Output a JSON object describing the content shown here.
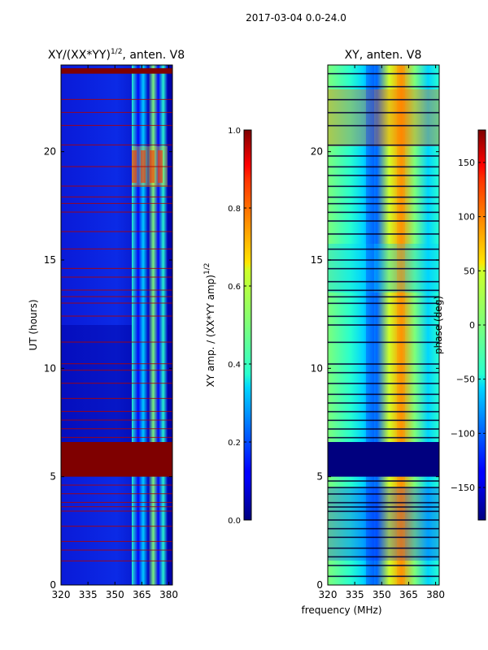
{
  "figure": {
    "suptitle": "2017-03-04 0.0-24.0",
    "xlabel_shared": "frequency (MHz)"
  },
  "chart_data": [
    {
      "type": "heatmap",
      "title_main": "XY/(XX*YY)",
      "title_sup": "1/2",
      "title_rest": ", anten. V8",
      "xlabel": "",
      "ylabel": "UT (hours)",
      "xlim": [
        320,
        382
      ],
      "ylim": [
        0,
        24
      ],
      "xticks": [
        "320",
        "335",
        "350",
        "365",
        "380"
      ],
      "xtick_values": [
        320,
        335,
        350,
        365,
        380
      ],
      "yticks": [
        "0",
        "5",
        "10",
        "15",
        "20"
      ],
      "ytick_values": [
        0,
        5,
        10,
        15,
        20
      ],
      "colorbar": {
        "label_main": "XY amp. / (XX*YY amp)",
        "label_sup": "1/2",
        "range": [
          0.0,
          1.0
        ],
        "ticks": [
          "0.0",
          "0.2",
          "0.4",
          "0.6",
          "0.8",
          "1.0"
        ],
        "tick_values": [
          0.0,
          0.2,
          0.4,
          0.6,
          0.8,
          1.0
        ]
      },
      "saturated_bands_hours": [
        [
          5.0,
          6.6
        ],
        [
          23.6,
          23.85
        ]
      ],
      "flag_lines_hours": [
        1.1,
        1.6,
        2.0,
        2.7,
        3.4,
        3.6,
        3.8,
        4.2,
        4.6,
        6.8,
        7.2,
        7.6,
        8.0,
        8.6,
        9.3,
        9.9,
        10.2,
        11.2,
        12.4,
        13.0,
        13.3,
        13.6,
        14.2,
        14.6,
        15.5,
        16.3,
        17.2,
        17.6,
        17.9,
        18.4,
        19.3,
        20.3,
        21.2,
        21.8,
        22.4
      ]
    },
    {
      "type": "heatmap",
      "title_main": "XY, anten. V8",
      "xlabel": "frequency (MHz)",
      "ylabel": "",
      "xlim": [
        320,
        382
      ],
      "ylim": [
        0,
        24
      ],
      "xticks": [
        "320",
        "335",
        "350",
        "365",
        "380"
      ],
      "xtick_values": [
        320,
        335,
        350,
        365,
        380
      ],
      "yticks": [
        "0",
        "5",
        "10",
        "15",
        "20"
      ],
      "ytick_values": [
        0,
        5,
        10,
        15,
        20
      ],
      "colorbar": {
        "label": "phase (deg)",
        "range": [
          -180,
          180
        ],
        "ticks": [
          "−150",
          "−100",
          "−50",
          "0",
          "50",
          "100",
          "150"
        ],
        "tick_values": [
          -150,
          -100,
          -50,
          0,
          50,
          100,
          150
        ]
      },
      "constant_band_hours": [
        5.0,
        6.6
      ],
      "flag_lines_hours": [
        0.4,
        0.9,
        1.3,
        1.7,
        2.2,
        2.6,
        3.0,
        3.4,
        3.6,
        3.8,
        4.2,
        4.5,
        4.8,
        6.8,
        7.2,
        7.6,
        8.0,
        8.4,
        8.8,
        9.3,
        9.8,
        10.2,
        11.2,
        12.0,
        12.4,
        13.0,
        13.3,
        13.6,
        14.0,
        14.6,
        15.0,
        15.5,
        16.2,
        16.8,
        17.2,
        17.6,
        17.9,
        18.4,
        18.9,
        19.3,
        19.8,
        20.3,
        21.2,
        21.8,
        22.4,
        23.0,
        23.6
      ]
    }
  ]
}
